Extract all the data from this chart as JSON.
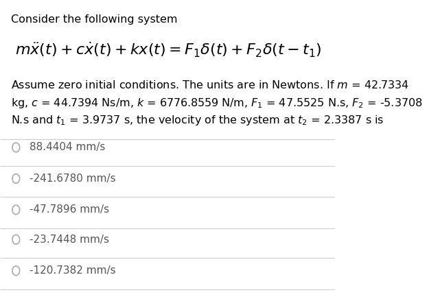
{
  "title": "Consider the following system",
  "equation": "$m\\ddot{x}(t) + c\\dot{x}(t) + kx(t) = F_1\\delta(t) + F_2\\delta(t - t_1)$",
  "body_text_line1": "Assume zero initial conditions. The units are in Newtons. If $m$ = 42.7334",
  "body_text_line2": "kg, $c$ = 44.7394 Ns/m, $k$ = 6776.8559 N/m, $F_1$ = 47.5525 N.s, $F_2$ = -5.3708",
  "body_text_line3": "N.s and $t_1$ = 3.9737 s, the velocity of the system at $t_2$ = 2.3387 s is",
  "options": [
    "88.4404 mm/s",
    "-241.6780 mm/s",
    "-47.7896 mm/s",
    "-23.7448 mm/s",
    "-120.7382 mm/s"
  ],
  "bg_color": "#ffffff",
  "text_color": "#000000",
  "option_text_color": "#555555",
  "circle_color": "#aaaaaa",
  "divider_color": "#cccccc",
  "title_fontsize": 11.5,
  "equation_fontsize": 16,
  "body_fontsize": 11.5,
  "option_fontsize": 11
}
